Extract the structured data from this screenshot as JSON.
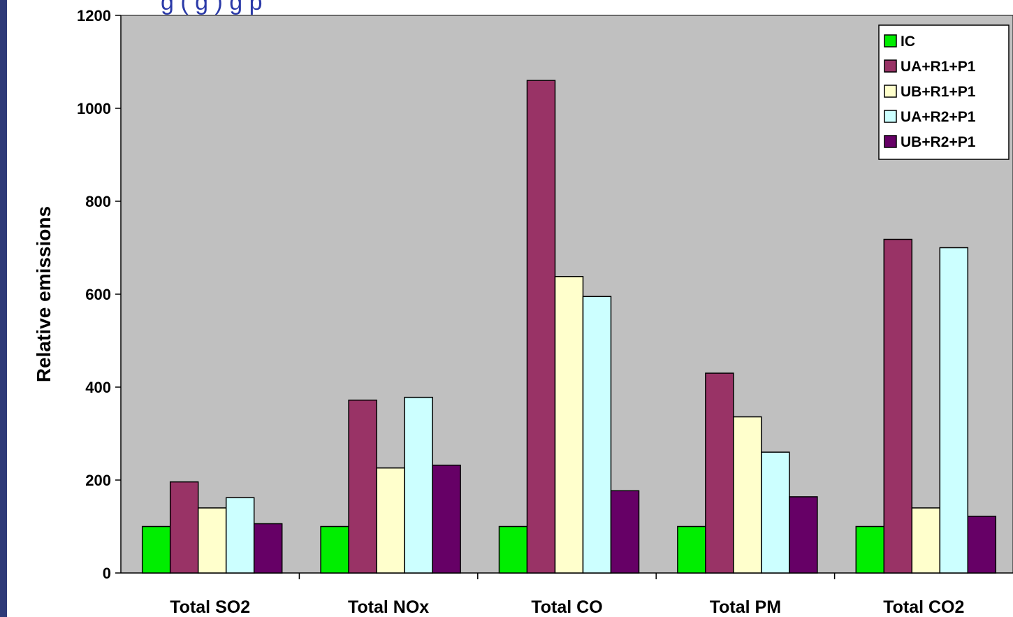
{
  "page": {
    "title_partial": "g     (         g )                  g         p"
  },
  "chart_data": {
    "type": "bar",
    "title": "",
    "xlabel": "",
    "ylabel": "Relative emissions",
    "ylim": [
      0,
      1200
    ],
    "yticks": [
      0,
      200,
      400,
      600,
      800,
      1000,
      1200
    ],
    "grid": false,
    "legend_position": "top-right",
    "plot_background": "#c0c0c0",
    "categories": [
      "Total SO2",
      "Total NOx",
      "Total CO",
      "Total PM",
      "Total CO2"
    ],
    "series": [
      {
        "name": "IC",
        "color": "#00ee00",
        "values": [
          100,
          100,
          100,
          100,
          100
        ]
      },
      {
        "name": "UA+R1+P1",
        "color": "#993366",
        "values": [
          196,
          372,
          1060,
          430,
          718
        ]
      },
      {
        "name": "UB+R1+P1",
        "color": "#ffffcc",
        "values": [
          140,
          226,
          638,
          336,
          140
        ]
      },
      {
        "name": "UA+R2+P1",
        "color": "#ccffff",
        "values": [
          162,
          378,
          595,
          260,
          700
        ]
      },
      {
        "name": "UB+R2+P1",
        "color": "#660066",
        "values": [
          106,
          232,
          177,
          164,
          122
        ]
      }
    ]
  }
}
